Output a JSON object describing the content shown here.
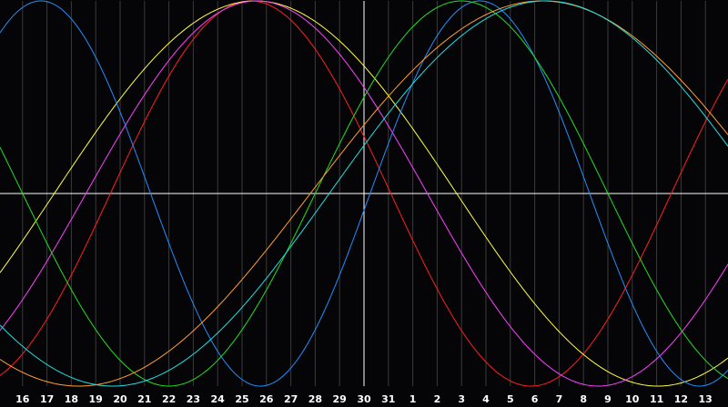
{
  "chart_data": {
    "type": "line",
    "title": "",
    "xlabel": "",
    "ylabel": "",
    "grid": true,
    "legend": "none",
    "background_color": "#050508",
    "grid_color": "#3a3a3a",
    "axis_color": "#ffffff",
    "x_tick_labels": [
      "16",
      "17",
      "18",
      "19",
      "20",
      "21",
      "22",
      "23",
      "24",
      "25",
      "26",
      "27",
      "28",
      "29",
      "30",
      "31",
      "1",
      "2",
      "3",
      "4",
      "5",
      "6",
      "7",
      "8",
      "9",
      "10",
      "11",
      "12",
      "13"
    ],
    "x_range": [
      15.0,
      44.9
    ],
    "y_range": [
      -1.0,
      1.0
    ],
    "current_day_x": 30,
    "series": [
      {
        "color": "#ff2020",
        "period": 23,
        "peak_x": 25.35
      },
      {
        "color": "#ffff40",
        "period": 33,
        "peak_x": 25.55
      },
      {
        "color": "#ff40ff",
        "period": 28,
        "peak_x": 25.6
      },
      {
        "color": "#2090ff",
        "period": 18,
        "peak_x": 34.75
      },
      {
        "color": "#20e020",
        "period": 24,
        "peak_x": 34.0
      },
      {
        "color": "#ffa030",
        "period": 38,
        "peak_x": 37.3
      },
      {
        "color": "#20e0e0",
        "period": 35.5,
        "peak_x": 37.45
      }
    ]
  }
}
